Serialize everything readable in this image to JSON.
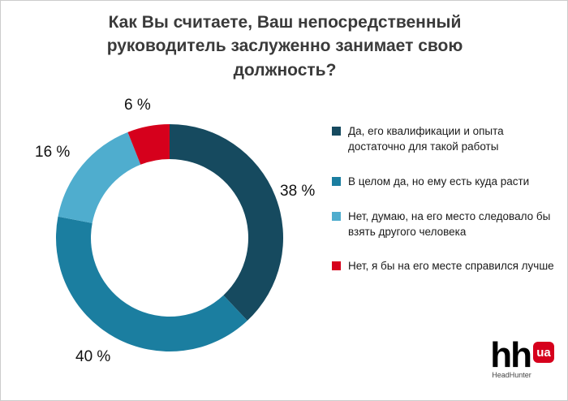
{
  "title": "Как Вы считаете, Ваш непосредственный руководитель заслуженно занимает свою должность?",
  "chart_data": {
    "type": "pie",
    "subtype": "donut",
    "categories": [
      "Да, его квалификации и опыта достаточно для такой работы",
      "В целом да, но ему есть куда расти",
      "Нет, думаю, на его место следовало бы взять другого человека",
      "Нет, я бы на его месте справился лучше"
    ],
    "values": [
      38,
      40,
      16,
      6
    ],
    "unit": "%",
    "labels": [
      "38 %",
      "40 %",
      "16 %",
      "6 %"
    ],
    "colors": [
      "#164a5f",
      "#1b7ea0",
      "#4fadce",
      "#d6001c"
    ],
    "start_angle": "top",
    "direction": "clockwise",
    "legend_position": "right",
    "title": "Как Вы считаете, Ваш непосредственный руководитель заслуженно занимает свою должность?"
  },
  "logo": {
    "hh": "hh",
    "ua": "ua",
    "caption": "HeadHunter",
    "accent": "#d6001c"
  }
}
